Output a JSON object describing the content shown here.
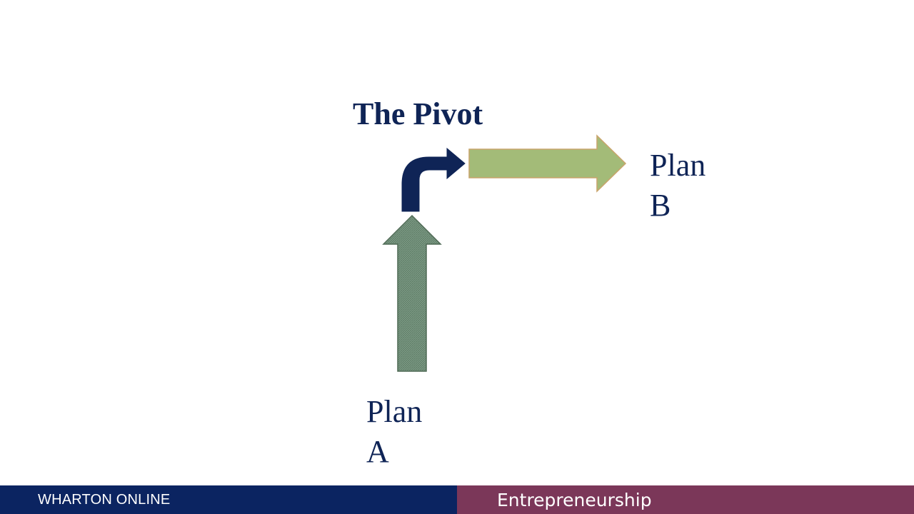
{
  "diagram": {
    "title": "The Pivot",
    "plan_a": {
      "line1": "Plan",
      "line2": "A"
    },
    "plan_b": {
      "line1": "Plan",
      "line2": "B"
    }
  },
  "footer": {
    "left_text": "WHARTON ONLINE",
    "right_text": "Entrepreneurship"
  },
  "colors": {
    "navy": "#0f2456",
    "footer_navy": "#0b2461",
    "footer_plum": "#7b3759",
    "plan_a_arrow": "#6f8f78",
    "plan_b_arrow": "#a3bb78",
    "pivot_arrow": "#0f2456"
  }
}
